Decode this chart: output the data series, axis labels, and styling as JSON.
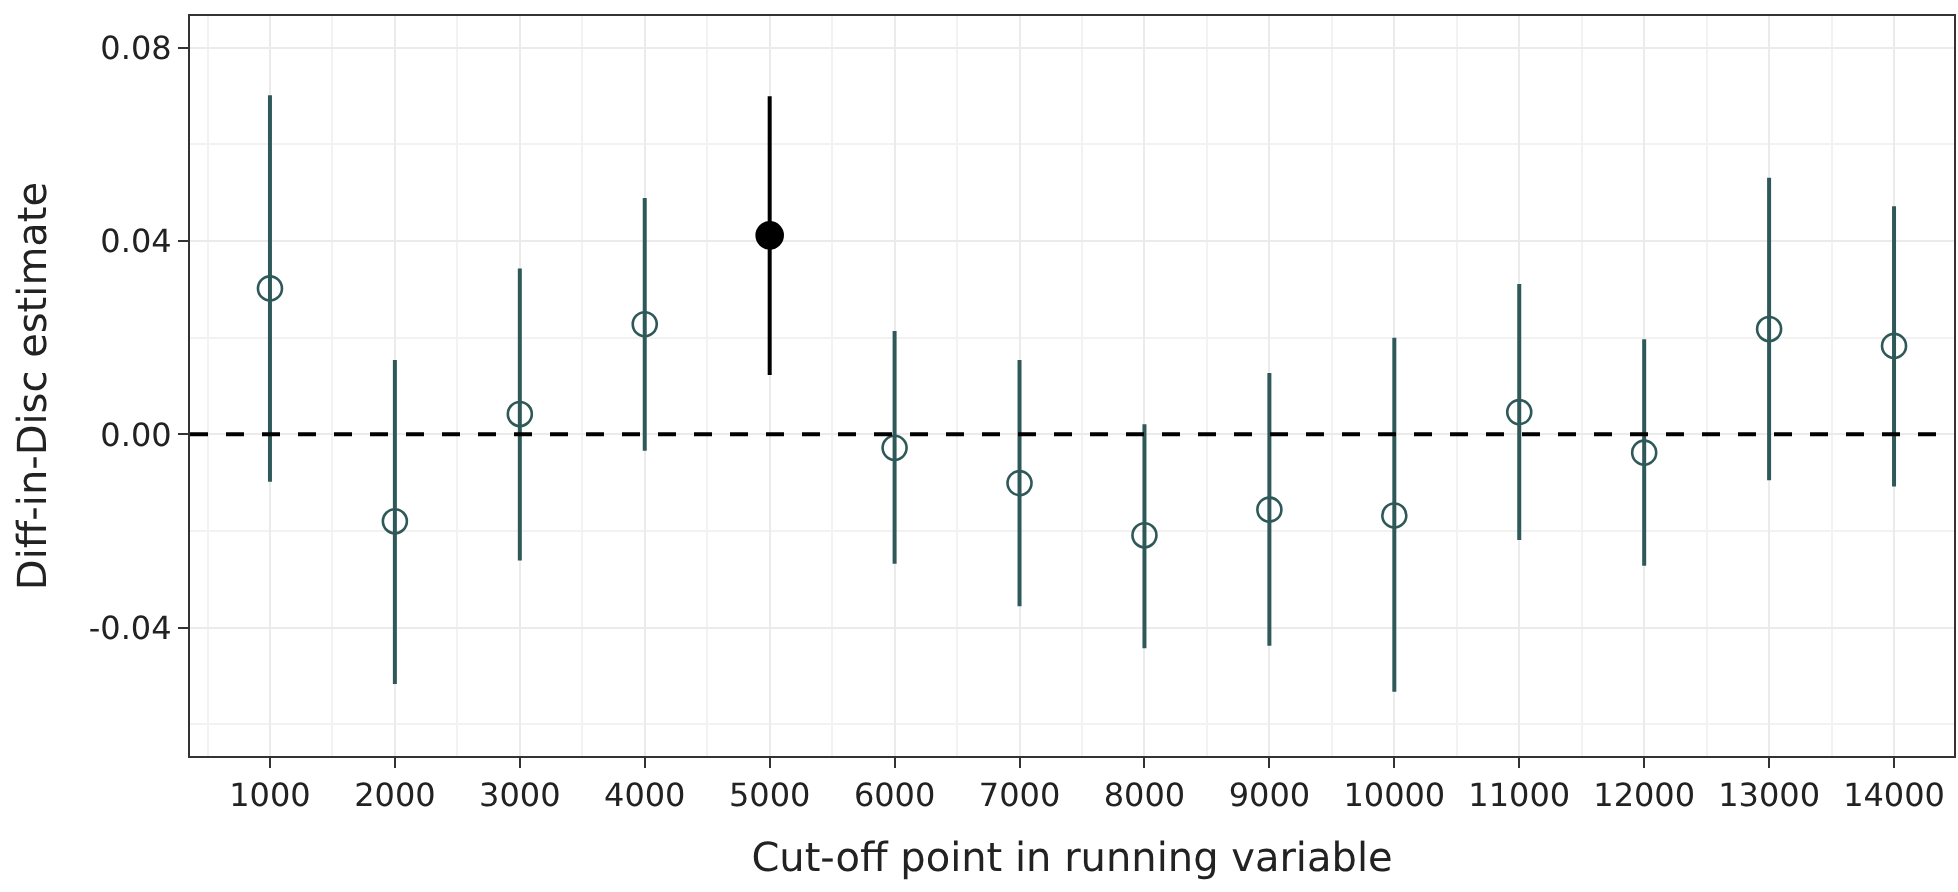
{
  "chart_data": {
    "type": "scatter",
    "xlabel": "Cut-off point in running variable",
    "ylabel": "Diff-in-Disc estimate",
    "xlim": [
      360,
      14480
    ],
    "ylim": [
      -0.0666,
      0.0866
    ],
    "xticks": [
      1000,
      2000,
      3000,
      4000,
      5000,
      6000,
      7000,
      8000,
      9000,
      10000,
      11000,
      12000,
      13000,
      14000
    ],
    "yticks": [
      {
        "value": -0.04,
        "label": "-0.04"
      },
      {
        "value": 0,
        "label": "0.00"
      },
      {
        "value": 0.04,
        "label": "0.04"
      },
      {
        "value": 0.08,
        "label": "0.08"
      }
    ],
    "grid": true,
    "marker": "circle",
    "ref_lines": [
      {
        "axis": "y",
        "value": 0,
        "color": "#000000",
        "line_style": "dashed"
      }
    ],
    "series": [
      {
        "color": "#2f5959",
        "x": [
          1000,
          2000,
          3000,
          4000,
          6000,
          7000,
          8000,
          9000,
          10000,
          11000,
          12000,
          13000,
          14000
        ],
        "values": [
          0.0302,
          -0.018,
          0.0042,
          0.0228,
          -0.0028,
          -0.0101,
          -0.0209,
          -0.0156,
          -0.0168,
          0.0046,
          -0.0038,
          0.0218,
          0.0183
        ],
        "errors": [
          [
            -0.0098,
            0.0702
          ],
          [
            -0.0517,
            0.0154
          ],
          [
            -0.0261,
            0.0343
          ],
          [
            -0.0034,
            0.0489
          ],
          [
            -0.0268,
            0.0214
          ],
          [
            -0.0356,
            0.0154
          ],
          [
            -0.0443,
            0.0021
          ],
          [
            -0.0438,
            0.0127
          ],
          [
            -0.0533,
            0.02
          ],
          [
            -0.0219,
            0.0311
          ],
          [
            -0.0272,
            0.0197
          ],
          [
            -0.0095,
            0.0531
          ],
          [
            -0.0108,
            0.0472
          ]
        ]
      },
      {
        "color": "#000000",
        "x": [
          5000
        ],
        "values": [
          0.0412
        ],
        "errors": [
          [
            0.0123,
            0.07
          ]
        ]
      }
    ]
  }
}
